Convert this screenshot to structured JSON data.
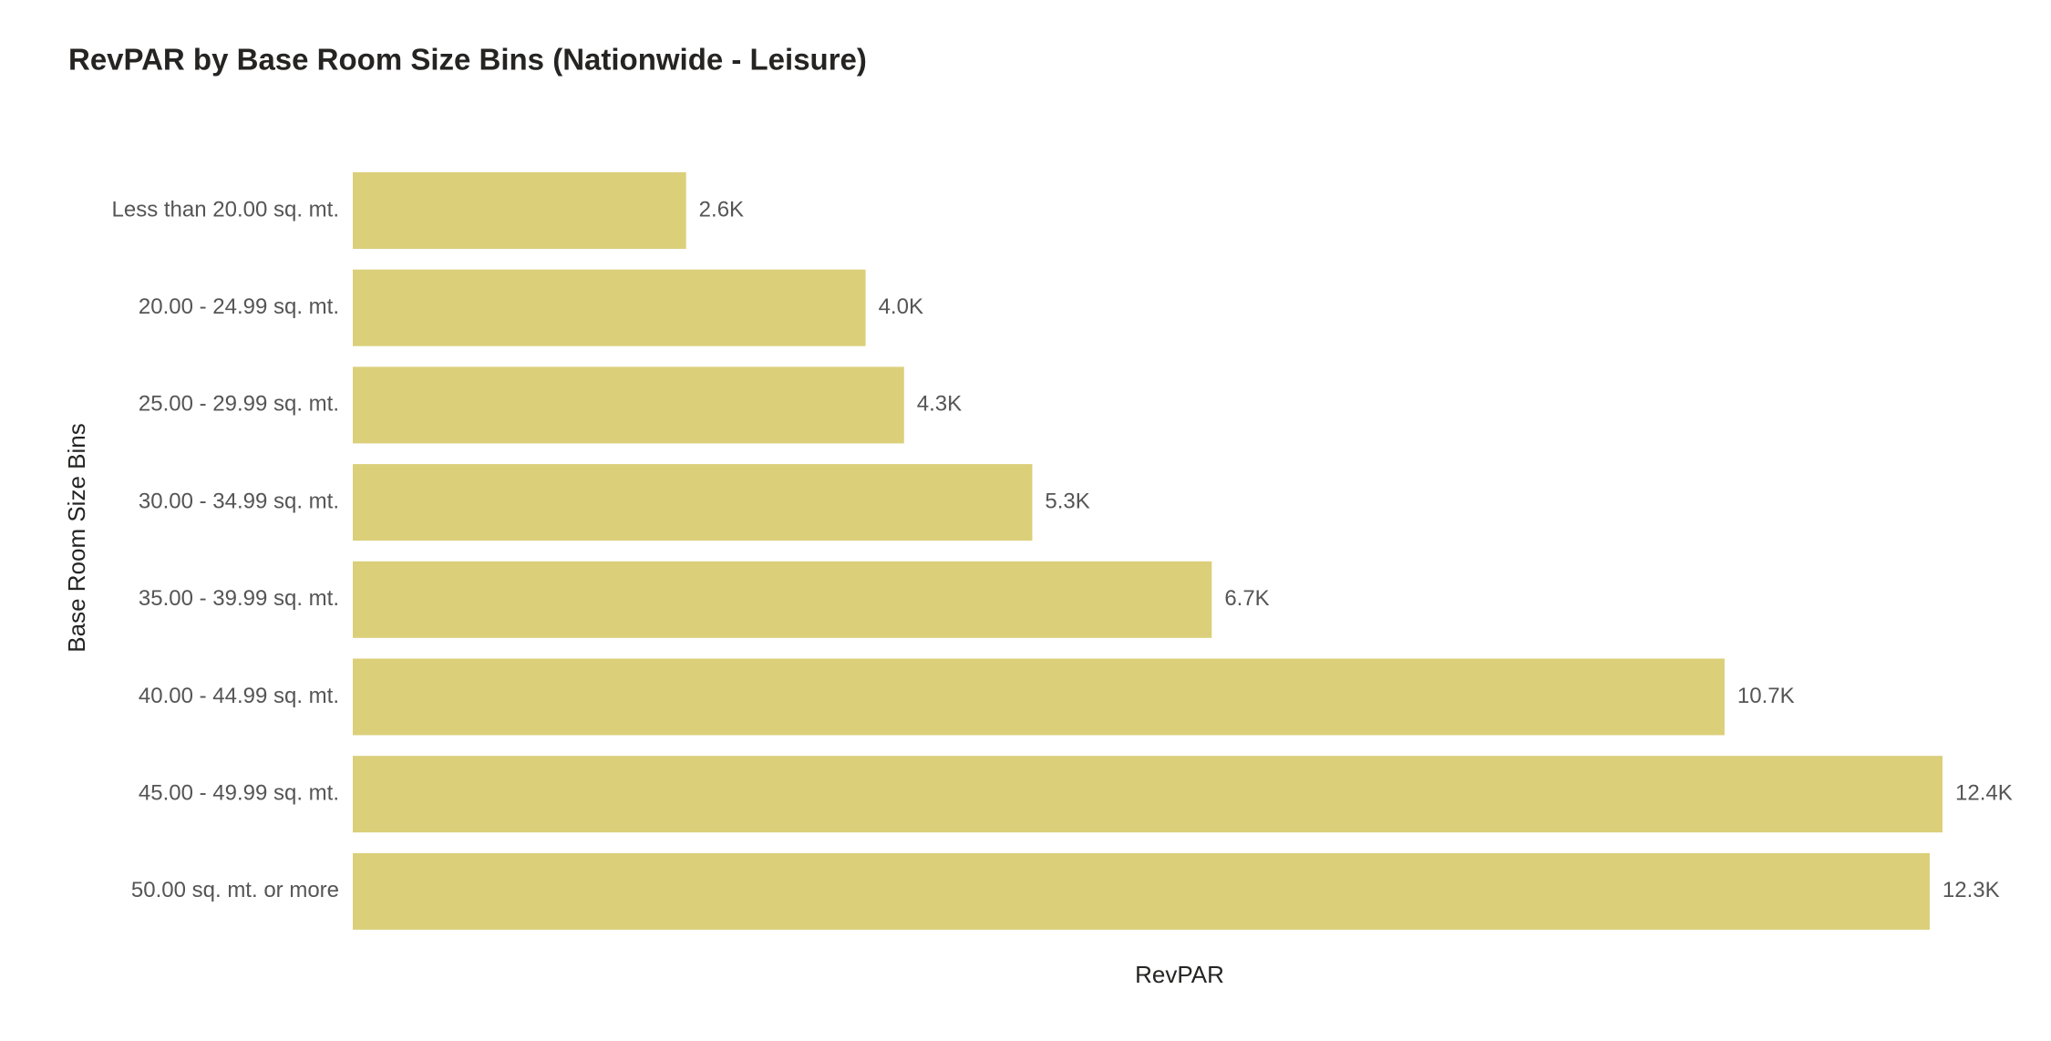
{
  "chart_data": {
    "type": "bar",
    "orientation": "horizontal",
    "title": "RevPAR by Base Room Size Bins (Nationwide - Leisure)",
    "x_label": "RevPAR",
    "y_label": "Base Room Size Bins",
    "categories": [
      "Less than 20.00 sq. mt.",
      "20.00 - 24.99 sq. mt.",
      "25.00 - 29.99 sq. mt.",
      "30.00 - 34.99 sq. mt.",
      "35.00 - 39.99 sq. mt.",
      "40.00 - 44.99 sq. mt.",
      "45.00 - 49.99 sq. mt.",
      "50.00 sq. mt. or more"
    ],
    "values": [
      2600,
      4000,
      4300,
      5300,
      6700,
      10700,
      12400,
      12300
    ],
    "value_labels": [
      "2.6K",
      "4.0K",
      "4.3K",
      "5.3K",
      "6.7K",
      "10.7K",
      "12.4K",
      "12.3K"
    ],
    "color": "#dbcf7a"
  }
}
